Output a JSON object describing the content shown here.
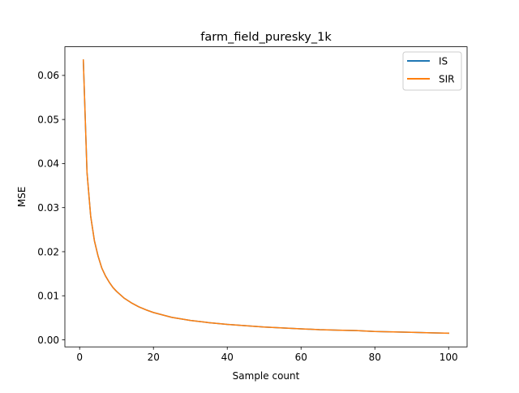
{
  "chart_data": {
    "type": "line",
    "title": "farm_field_puresky_1k",
    "xlabel": "Sample count",
    "ylabel": "MSE",
    "xlim": [
      -4.0,
      105.0
    ],
    "ylim": [
      -0.0016,
      0.0665
    ],
    "x_ticks": [
      0,
      20,
      40,
      60,
      80,
      100
    ],
    "x_tick_labels": [
      "0",
      "20",
      "40",
      "60",
      "80",
      "100"
    ],
    "y_ticks": [
      0.0,
      0.01,
      0.02,
      0.03,
      0.04,
      0.05,
      0.06
    ],
    "y_tick_labels": [
      "0.00",
      "0.01",
      "0.02",
      "0.03",
      "0.04",
      "0.05",
      "0.06"
    ],
    "grid": false,
    "legend_position": "top-right",
    "series": [
      {
        "name": "IS",
        "color": "#1f77b4",
        "x": [
          1,
          2,
          3,
          4,
          5,
          6,
          7,
          8,
          9,
          10,
          12,
          14,
          16,
          18,
          20,
          25,
          30,
          35,
          40,
          45,
          50,
          55,
          60,
          65,
          70,
          75,
          80,
          85,
          90,
          95,
          100
        ],
        "y": [
          0.0635,
          0.038,
          0.028,
          0.0225,
          0.019,
          0.0163,
          0.0145,
          0.0131,
          0.0119,
          0.011,
          0.0095,
          0.0084,
          0.0075,
          0.0068,
          0.0062,
          0.0051,
          0.0044,
          0.0039,
          0.0035,
          0.0032,
          0.0029,
          0.0027,
          0.0025,
          0.0023,
          0.0022,
          0.0021,
          0.0019,
          0.0018,
          0.0017,
          0.0016,
          0.0015
        ]
      },
      {
        "name": "SIR",
        "color": "#ff7f0e",
        "x": [
          1,
          2,
          3,
          4,
          5,
          6,
          7,
          8,
          9,
          10,
          12,
          14,
          16,
          18,
          20,
          25,
          30,
          35,
          40,
          45,
          50,
          55,
          60,
          65,
          70,
          75,
          80,
          85,
          90,
          95,
          100
        ],
        "y": [
          0.0635,
          0.038,
          0.028,
          0.0225,
          0.019,
          0.0163,
          0.0145,
          0.0131,
          0.0119,
          0.011,
          0.0095,
          0.0084,
          0.0075,
          0.0068,
          0.0062,
          0.0051,
          0.0044,
          0.0039,
          0.0035,
          0.0032,
          0.0029,
          0.0027,
          0.0025,
          0.0023,
          0.0022,
          0.0021,
          0.0019,
          0.0018,
          0.0017,
          0.0016,
          0.0015
        ]
      }
    ]
  }
}
